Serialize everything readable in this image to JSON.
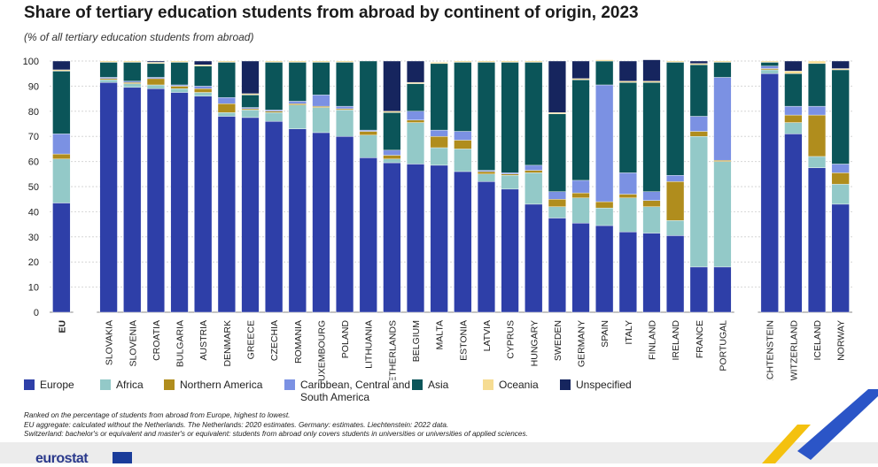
{
  "title": "Share of tertiary education students from abroad by continent of origin, 2023",
  "subtitle": "(% of all tertiary education students from abroad)",
  "legend": [
    {
      "label": "Europe",
      "color": "#2e3fa8"
    },
    {
      "label": "Africa",
      "color": "#93c9c8"
    },
    {
      "label": "Northern America",
      "color": "#b08d1d"
    },
    {
      "label": "Caribbean, Central and South America",
      "color": "#7b91e3"
    },
    {
      "label": "Asia",
      "color": "#0b5559"
    },
    {
      "label": "Oceania",
      "color": "#f6dc92"
    },
    {
      "label": "Unspecified",
      "color": "#16255e"
    }
  ],
  "notes": [
    "Ranked on the percentage of students from abroad from Europe, highest to lowest.",
    "EU aggregate: calculated without the Netherlands. The Netherlands: 2020 estimates. Germany: estimates. Liechtenstein: 2022 data.",
    "Switzerland: bachelor's or equivalent and master's or equivalent: students from abroad only covers students in universities or universities of applied sciences."
  ],
  "logo": "eurostat",
  "chart_data": {
    "type": "bar",
    "stacked": true,
    "title": "Share of tertiary education students from abroad by continent of origin, 2023",
    "ylim": [
      0,
      100
    ],
    "yticks": [
      0,
      10,
      20,
      30,
      40,
      50,
      60,
      70,
      80,
      90,
      100
    ],
    "xlabel": "",
    "ylabel": "",
    "categories": [
      "EU",
      "Slovakia",
      "Slovenia",
      "Croatia",
      "Bulgaria",
      "Austria",
      "Denmark",
      "Greece",
      "Czechia",
      "Romania",
      "Luxembourg",
      "Poland",
      "Lithuania",
      "Netherlands",
      "Belgium",
      "Malta",
      "Estonia",
      "Latvia",
      "Cyprus",
      "Hungary",
      "Sweden",
      "Germany",
      "Spain",
      "Italy",
      "Finland",
      "Ireland",
      "France",
      "Portugal",
      "Liechtenstein",
      "Switzerland",
      "Iceland",
      "Norway"
    ],
    "groups": [
      [
        "EU"
      ],
      [
        "Slovakia",
        "Slovenia",
        "Croatia",
        "Bulgaria",
        "Austria",
        "Denmark",
        "Greece",
        "Czechia",
        "Romania",
        "Luxembourg",
        "Poland",
        "Lithuania",
        "Netherlands",
        "Belgium",
        "Malta",
        "Estonia",
        "Latvia",
        "Cyprus",
        "Hungary",
        "Sweden",
        "Germany",
        "Spain",
        "Italy",
        "Finland",
        "Ireland",
        "France",
        "Portugal"
      ],
      [
        "Liechtenstein",
        "Switzerland",
        "Iceland",
        "Norway"
      ]
    ],
    "series": [
      {
        "name": "Europe",
        "color": "#2e3fa8",
        "values": [
          43.5,
          91.5,
          89.5,
          89.0,
          87.5,
          86.0,
          78.0,
          77.5,
          76.0,
          73.0,
          71.5,
          70.0,
          61.5,
          59.5,
          59.0,
          58.5,
          56.0,
          52.0,
          49.0,
          43.0,
          37.5,
          35.5,
          34.5,
          32.0,
          31.5,
          30.5,
          18.0,
          18.0,
          95.0,
          71.0,
          57.5,
          43.0
        ]
      },
      {
        "name": "Africa",
        "color": "#93c9c8",
        "values": [
          17.5,
          1.0,
          1.5,
          1.5,
          1.5,
          1.5,
          1.5,
          3.0,
          3.5,
          9.5,
          10.0,
          10.5,
          9.0,
          1.5,
          16.5,
          7.0,
          9.0,
          3.0,
          5.5,
          12.5,
          4.5,
          10.0,
          7.0,
          13.5,
          10.5,
          6.0,
          52.0,
          42.0,
          1.5,
          4.5,
          4.5,
          8.0
        ]
      },
      {
        "name": "Northern America",
        "color": "#b08d1d",
        "values": [
          2.0,
          0.5,
          0.5,
          2.5,
          1.0,
          1.5,
          3.5,
          0.5,
          0.5,
          0.5,
          0.5,
          0.5,
          1.5,
          1.5,
          1.0,
          4.5,
          3.5,
          1.0,
          0.5,
          1.0,
          3.0,
          2.0,
          2.5,
          1.5,
          2.5,
          15.5,
          2.0,
          0.5,
          0.5,
          3.0,
          16.5,
          4.5
        ]
      },
      {
        "name": "Caribbean, Central and South America",
        "color": "#7b91e3",
        "values": [
          8.0,
          0.5,
          0.5,
          0.5,
          0.5,
          1.0,
          2.5,
          0.5,
          0.5,
          1.0,
          4.5,
          1.0,
          0.5,
          2.0,
          3.5,
          2.5,
          3.5,
          0.5,
          0.5,
          2.0,
          3.0,
          5.0,
          46.5,
          8.5,
          3.5,
          2.5,
          6.0,
          33.0,
          1.0,
          3.5,
          3.5,
          3.5
        ]
      },
      {
        "name": "Asia",
        "color": "#0b5559",
        "values": [
          25.0,
          6.0,
          7.5,
          5.5,
          9.0,
          8.0,
          14.0,
          5.0,
          19.0,
          15.5,
          13.0,
          17.5,
          27.5,
          15.0,
          11.0,
          26.5,
          27.5,
          43.0,
          44.0,
          41.0,
          31.0,
          40.0,
          9.5,
          36.0,
          43.5,
          45.0,
          20.5,
          6.0,
          1.5,
          13.0,
          17.0,
          37.5
        ]
      },
      {
        "name": "Oceania",
        "color": "#f6dc92",
        "values": [
          0.5,
          0.5,
          0.5,
          0.5,
          0.5,
          0.5,
          0.5,
          0.5,
          0.5,
          0.5,
          0.5,
          0.5,
          0.0,
          0.5,
          0.5,
          0.5,
          0.5,
          0.5,
          0.5,
          0.5,
          0.5,
          0.5,
          0.5,
          0.5,
          0.5,
          0.5,
          0.5,
          0.5,
          0.5,
          1.0,
          1.0,
          0.5
        ]
      },
      {
        "name": "Unspecified",
        "color": "#16255e",
        "values": [
          3.5,
          0.0,
          0.0,
          0.5,
          0.0,
          1.5,
          0.0,
          13.0,
          0.0,
          0.0,
          0.0,
          0.0,
          0.0,
          20.0,
          8.5,
          0.0,
          0.0,
          0.0,
          0.0,
          0.0,
          20.5,
          7.0,
          0.0,
          8.0,
          8.5,
          0.0,
          1.0,
          0.0,
          0.0,
          4.0,
          0.0,
          3.0
        ]
      }
    ]
  }
}
